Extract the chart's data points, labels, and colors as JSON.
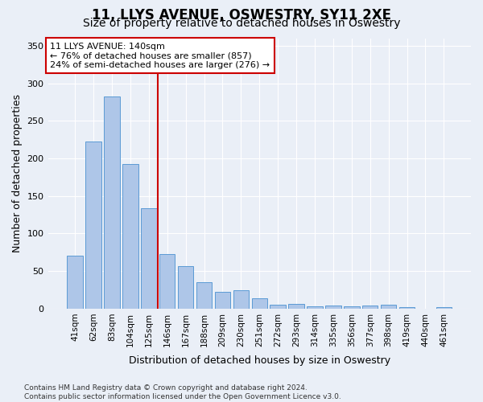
{
  "title": "11, LLYS AVENUE, OSWESTRY, SY11 2XE",
  "subtitle": "Size of property relative to detached houses in Oswestry",
  "xlabel": "Distribution of detached houses by size in Oswestry",
  "ylabel": "Number of detached properties",
  "categories": [
    "41sqm",
    "62sqm",
    "83sqm",
    "104sqm",
    "125sqm",
    "146sqm",
    "167sqm",
    "188sqm",
    "209sqm",
    "230sqm",
    "251sqm",
    "272sqm",
    "293sqm",
    "314sqm",
    "335sqm",
    "356sqm",
    "377sqm",
    "398sqm",
    "419sqm",
    "440sqm",
    "461sqm"
  ],
  "values": [
    70,
    222,
    282,
    192,
    134,
    73,
    57,
    35,
    22,
    25,
    14,
    5,
    6,
    3,
    4,
    3,
    4,
    5,
    2,
    0,
    2
  ],
  "bar_color": "#aec6e8",
  "bar_edge_color": "#5b9bd5",
  "vline_x": 4.5,
  "vline_color": "#cc0000",
  "annotation_text": "11 LLYS AVENUE: 140sqm\n← 76% of detached houses are smaller (857)\n24% of semi-detached houses are larger (276) →",
  "annotation_box_color": "#ffffff",
  "annotation_box_edge_color": "#cc0000",
  "background_color": "#eaeff7",
  "plot_bg_color": "#eaeff7",
  "footer_text": "Contains HM Land Registry data © Crown copyright and database right 2024.\nContains public sector information licensed under the Open Government Licence v3.0.",
  "ylim": [
    0,
    360
  ],
  "yticks": [
    0,
    50,
    100,
    150,
    200,
    250,
    300,
    350
  ],
  "title_fontsize": 12,
  "subtitle_fontsize": 10,
  "xlabel_fontsize": 9,
  "ylabel_fontsize": 9
}
